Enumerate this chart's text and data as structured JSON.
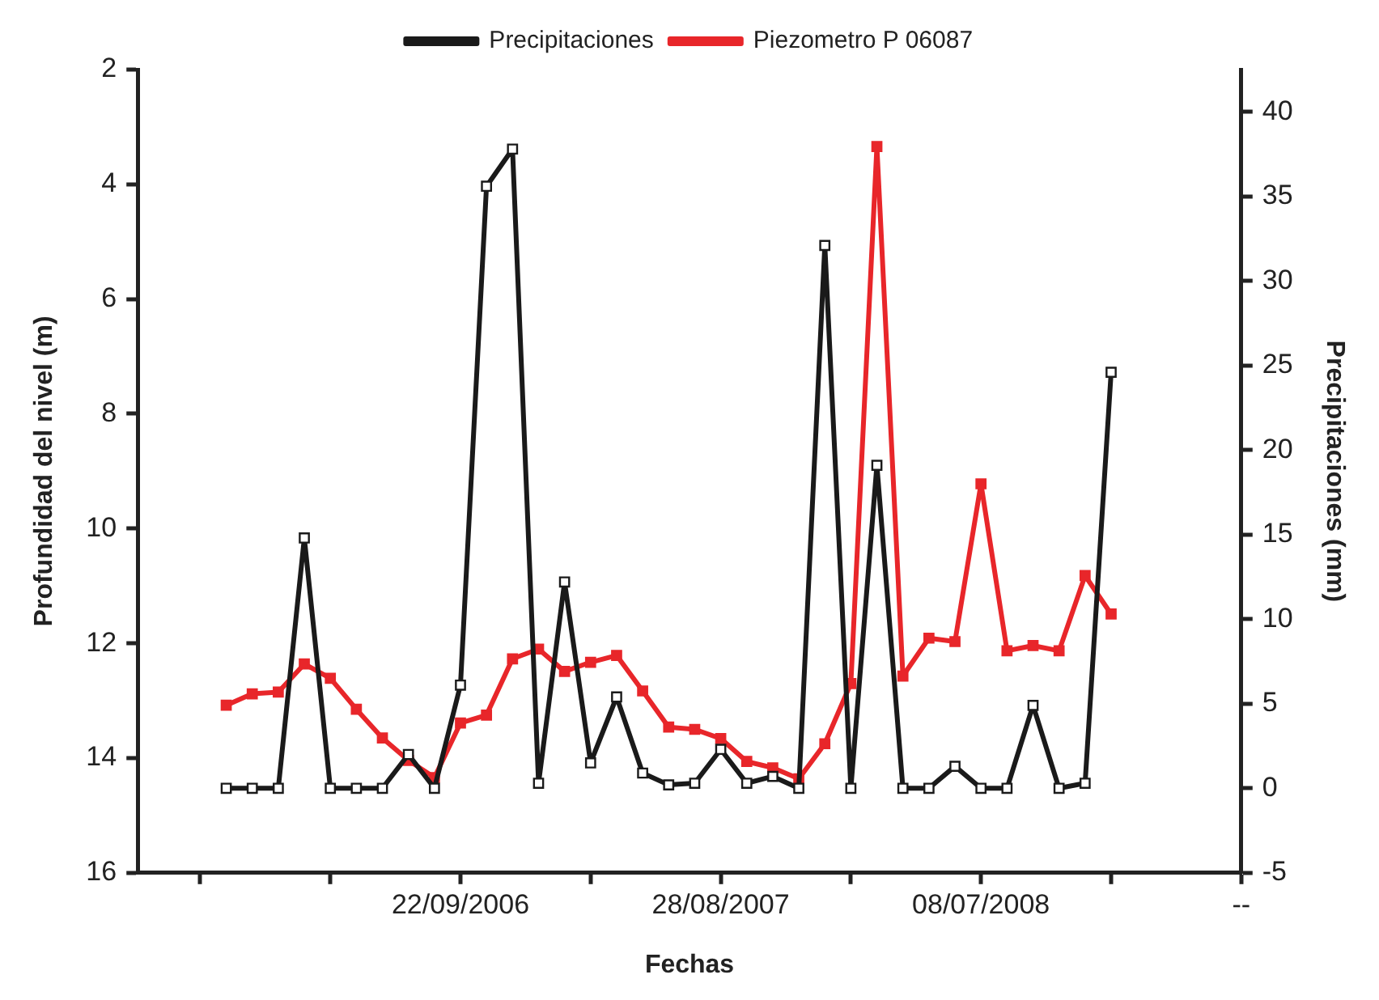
{
  "chart_data": {
    "type": "line",
    "xlabel": "Fechas",
    "ylabel": "Profundidad del nivel (m)",
    "y2label": "Precipitaciones (mm)",
    "categories": [
      null,
      null,
      null,
      null,
      null,
      null,
      null,
      null,
      null,
      null,
      "22/09/2006",
      null,
      null,
      null,
      null,
      null,
      null,
      null,
      null,
      null,
      "28/08/2007",
      null,
      null,
      null,
      null,
      null,
      null,
      null,
      null,
      null,
      "08/07/2008",
      null,
      null,
      null,
      null,
      null,
      null,
      null,
      null,
      null,
      "--"
    ],
    "series": [
      {
        "name": "Piezometro P 06087",
        "color": "#e8262a",
        "marker": "square",
        "values": [
          null,
          13.08,
          12.88,
          12.85,
          12.36,
          12.61,
          13.15,
          13.65,
          14.04,
          14.34,
          13.39,
          13.25,
          12.27,
          12.1,
          12.49,
          12.33,
          12.21,
          12.83,
          13.46,
          13.5,
          13.66,
          14.06,
          14.17,
          14.36,
          13.75,
          12.7,
          3.34,
          12.57,
          11.91,
          11.97,
          9.22,
          12.13,
          12.04,
          12.13,
          10.82,
          11.49,
          null,
          null,
          null,
          null,
          null
        ]
      },
      {
        "name": "Precipitaciones",
        "color": "#1a1a1a",
        "marker": "square",
        "axis": "y2",
        "values": [
          null,
          0,
          0,
          0,
          14.8,
          0,
          0,
          0,
          2,
          0,
          6.1,
          35.6,
          37.8,
          0.3,
          12.2,
          1.5,
          5.4,
          0.9,
          0.2,
          0.3,
          2.3,
          0.3,
          0.7,
          0,
          32.1,
          0,
          19.1,
          0,
          0,
          1.3,
          0,
          0,
          4.9,
          0,
          0.3,
          24.6,
          null,
          null,
          null,
          null,
          null
        ]
      }
    ],
    "ylim": [
      16,
      2
    ],
    "yticks": [
      2,
      4,
      6,
      8,
      10,
      12,
      14,
      16
    ],
    "y2lim": [
      -5,
      42.5
    ],
    "y2ticks": [
      -5,
      0,
      5,
      10,
      15,
      20,
      25,
      30,
      35,
      40
    ],
    "grid": false,
    "legend": "top",
    "line_style": "solid"
  }
}
